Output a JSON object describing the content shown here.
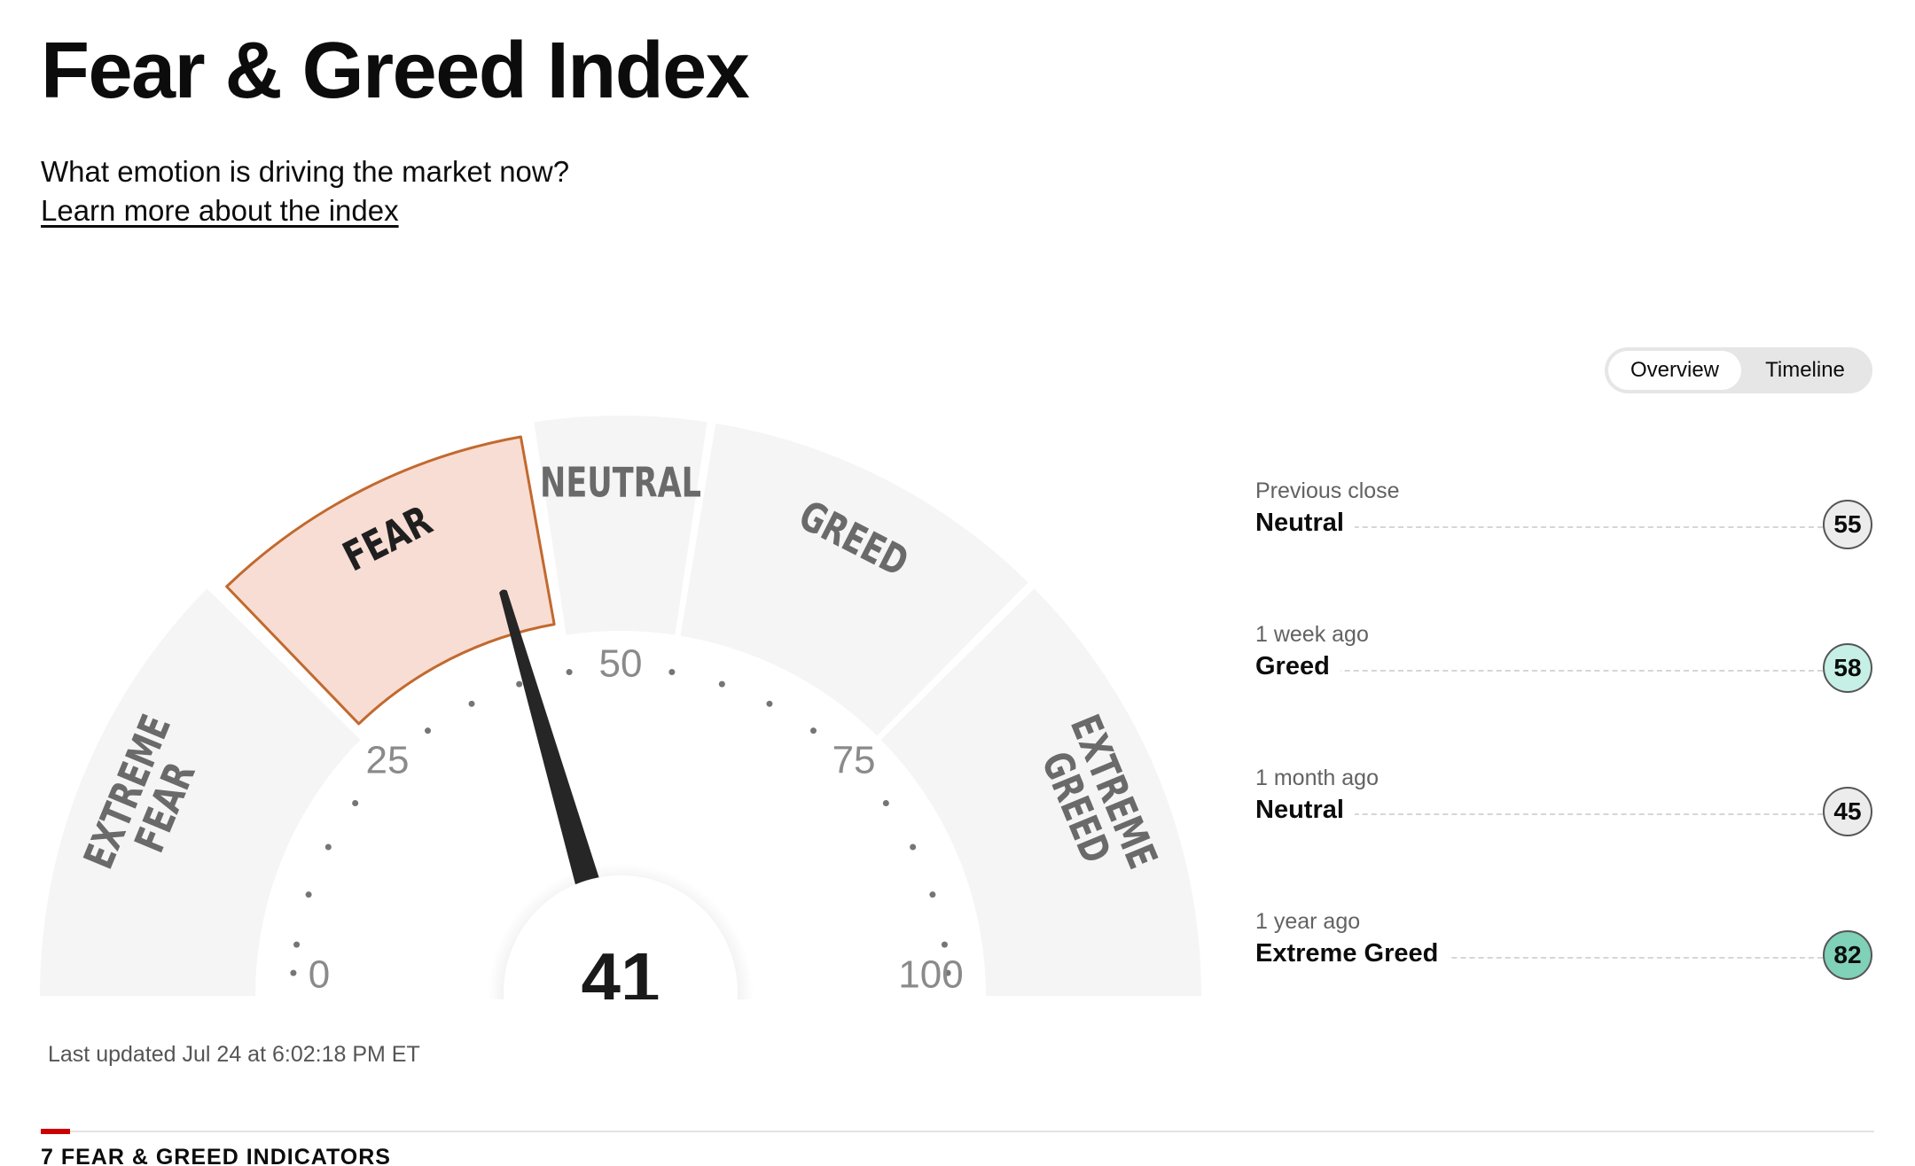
{
  "header": {
    "title": "Fear & Greed Index",
    "subtitle": "What emotion is driving the market now?",
    "learn_link": "Learn more about the index"
  },
  "view_toggle": {
    "options": [
      "Overview",
      "Timeline"
    ],
    "selected": "Overview"
  },
  "gauge": {
    "value": 41,
    "value_label": "41",
    "active_segment": "FEAR",
    "segments": [
      {
        "label": "EXTREME FEAR",
        "lines": [
          "EXTREME",
          "FEAR"
        ],
        "range": [
          0,
          25
        ]
      },
      {
        "label": "FEAR",
        "lines": [
          "FEAR"
        ],
        "range": [
          25,
          45
        ]
      },
      {
        "label": "NEUTRAL",
        "lines": [
          "NEUTRAL"
        ],
        "range": [
          45,
          55
        ]
      },
      {
        "label": "GREED",
        "lines": [
          "GREED"
        ],
        "range": [
          55,
          75
        ]
      },
      {
        "label": "EXTREME GREED",
        "lines": [
          "EXTREME",
          "GREED"
        ],
        "range": [
          75,
          100
        ]
      }
    ],
    "scale_labels": [
      "0",
      "25",
      "50",
      "75",
      "100"
    ],
    "colors": {
      "segment_bg": "#f5f5f5",
      "active_fill": "#f8ddd4",
      "active_stroke": "#c2692e",
      "needle": "#262626",
      "label": "#6a6a6a",
      "active_label": "#1f1f1f"
    }
  },
  "last_updated": "Last updated Jul 24 at 6:02:18 PM ET",
  "history": [
    {
      "label": "Previous close",
      "value": "Neutral",
      "score": "55",
      "color": "#ececec"
    },
    {
      "label": "1 week ago",
      "value": "Greed",
      "score": "58",
      "color": "#c6f0e6"
    },
    {
      "label": "1 month ago",
      "value": "Neutral",
      "score": "45",
      "color": "#ececec"
    },
    {
      "label": "1 year ago",
      "value": "Extreme Greed",
      "score": "82",
      "color": "#7fd1b7"
    }
  ],
  "indicators": {
    "title": "7 FEAR & GREED INDICATORS",
    "accent_color": "#cc0000"
  }
}
